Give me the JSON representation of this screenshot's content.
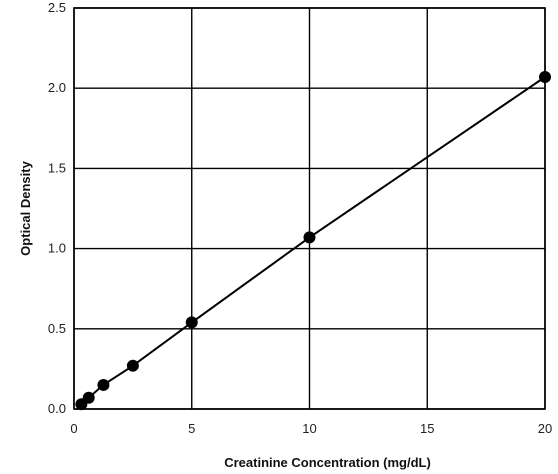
{
  "chart_data": {
    "type": "scatter",
    "title": "",
    "xlabel": "Creatinine Concentration (mg/dL)",
    "ylabel": "Optical Density",
    "xlim": [
      0,
      20
    ],
    "ylim": [
      0,
      2.5
    ],
    "x_ticks": [
      0,
      5,
      10,
      15,
      20
    ],
    "y_ticks": [
      0.0,
      0.5,
      1.0,
      1.5,
      2.0,
      2.5
    ],
    "x_tick_labels": [
      "0",
      "5",
      "10",
      "15",
      "20"
    ],
    "y_tick_labels": [
      "0.0",
      "0.5",
      "1.0",
      "1.5",
      "2.0",
      "2.5"
    ],
    "grid": true,
    "legend": "none",
    "series": [
      {
        "x": [
          0.3125,
          0.625,
          1.25,
          2.5,
          5,
          10,
          20
        ],
        "y": [
          0.03,
          0.07,
          0.15,
          0.27,
          0.54,
          1.07,
          2.07
        ],
        "marker": "circle",
        "line": "smooth",
        "color": "#000000"
      }
    ]
  }
}
